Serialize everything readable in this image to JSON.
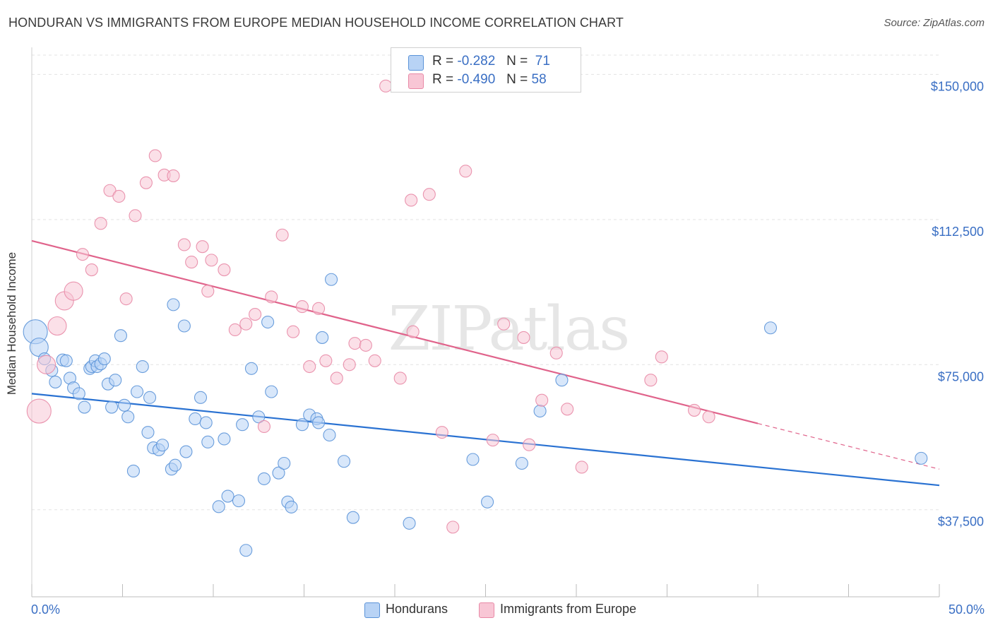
{
  "header": {
    "title": "HONDURAN VS IMMIGRANTS FROM EUROPE MEDIAN HOUSEHOLD INCOME CORRELATION CHART",
    "source": "Source: ZipAtlas.com"
  },
  "colors": {
    "hondurans_fill": "#b8d3f5",
    "hondurans_stroke": "#5b93d8",
    "hondurans_line": "#2a72d2",
    "europe_fill": "#f8c6d5",
    "europe_stroke": "#e889a6",
    "europe_line": "#e0638b",
    "tick_label": "#3a6fc4",
    "grid": "#e3e3e3"
  },
  "legend_top": {
    "rows": [
      {
        "r_label": "R =",
        "r_value": "-0.282",
        "n_label": "N =",
        "n_value": "71"
      },
      {
        "r_label": "R =",
        "r_value": "-0.490",
        "n_label": "N =",
        "n_value": "58"
      }
    ]
  },
  "chart_data": {
    "type": "scatter",
    "title": "HONDURAN VS IMMIGRANTS FROM EUROPE MEDIAN HOUSEHOLD INCOME CORRELATION CHART",
    "xlabel": "",
    "ylabel": "Median Household Income",
    "xlim": [
      0,
      50
    ],
    "ylim": [
      15000,
      155000
    ],
    "x_tick_labels": [
      "0.0%",
      "50.0%"
    ],
    "y_ticks": [
      37500,
      75000,
      112500,
      150000
    ],
    "y_tick_labels": [
      "$37,500",
      "$75,000",
      "$112,500",
      "$150,000"
    ],
    "grid": true,
    "legend_position": "bottom",
    "watermark": "ZIPatlas",
    "series": [
      {
        "name": "Hondurans",
        "trend": {
          "x": [
            0,
            50
          ],
          "y": [
            67500,
            43800
          ]
        },
        "points": [
          {
            "x": 0.2,
            "y": 83500,
            "s": 3
          },
          {
            "x": 0.4,
            "y": 79500,
            "s": 2
          },
          {
            "x": 0.7,
            "y": 76500,
            "s": 1
          },
          {
            "x": 1.1,
            "y": 73500,
            "s": 1
          },
          {
            "x": 1.3,
            "y": 70500,
            "s": 1
          },
          {
            "x": 1.7,
            "y": 76200,
            "s": 1
          },
          {
            "x": 1.9,
            "y": 76000,
            "s": 1
          },
          {
            "x": 2.1,
            "y": 71500,
            "s": 1
          },
          {
            "x": 2.3,
            "y": 69000,
            "s": 1
          },
          {
            "x": 2.6,
            "y": 67500,
            "s": 1
          },
          {
            "x": 2.9,
            "y": 64000,
            "s": 1
          },
          {
            "x": 3.2,
            "y": 74000,
            "s": 1
          },
          {
            "x": 3.3,
            "y": 74500,
            "s": 1
          },
          {
            "x": 3.5,
            "y": 76000,
            "s": 1
          },
          {
            "x": 3.6,
            "y": 74500,
            "s": 1
          },
          {
            "x": 3.8,
            "y": 75200,
            "s": 1
          },
          {
            "x": 4.0,
            "y": 76500,
            "s": 1
          },
          {
            "x": 4.2,
            "y": 70000,
            "s": 1
          },
          {
            "x": 4.4,
            "y": 64000,
            "s": 1
          },
          {
            "x": 4.6,
            "y": 71000,
            "s": 1
          },
          {
            "x": 4.9,
            "y": 82500,
            "s": 1
          },
          {
            "x": 5.1,
            "y": 64500,
            "s": 1
          },
          {
            "x": 5.3,
            "y": 61500,
            "s": 1
          },
          {
            "x": 5.6,
            "y": 47500,
            "s": 1
          },
          {
            "x": 5.8,
            "y": 68000,
            "s": 1
          },
          {
            "x": 6.1,
            "y": 74500,
            "s": 1
          },
          {
            "x": 6.4,
            "y": 57500,
            "s": 1
          },
          {
            "x": 6.5,
            "y": 66500,
            "s": 1
          },
          {
            "x": 6.7,
            "y": 53500,
            "s": 1
          },
          {
            "x": 7.0,
            "y": 53000,
            "s": 1
          },
          {
            "x": 7.2,
            "y": 54200,
            "s": 1
          },
          {
            "x": 7.7,
            "y": 48000,
            "s": 1
          },
          {
            "x": 7.8,
            "y": 90500,
            "s": 1
          },
          {
            "x": 7.9,
            "y": 49000,
            "s": 1
          },
          {
            "x": 8.4,
            "y": 85000,
            "s": 1
          },
          {
            "x": 8.5,
            "y": 52500,
            "s": 1
          },
          {
            "x": 9.0,
            "y": 61000,
            "s": 1
          },
          {
            "x": 9.3,
            "y": 66500,
            "s": 1
          },
          {
            "x": 9.6,
            "y": 60000,
            "s": 1
          },
          {
            "x": 9.7,
            "y": 55000,
            "s": 1
          },
          {
            "x": 10.3,
            "y": 38300,
            "s": 1
          },
          {
            "x": 10.6,
            "y": 55800,
            "s": 1
          },
          {
            "x": 10.8,
            "y": 41000,
            "s": 1
          },
          {
            "x": 11.4,
            "y": 39800,
            "s": 1
          },
          {
            "x": 11.6,
            "y": 59500,
            "s": 1
          },
          {
            "x": 11.8,
            "y": 27000,
            "s": 1
          },
          {
            "x": 12.1,
            "y": 74000,
            "s": 1
          },
          {
            "x": 12.5,
            "y": 61500,
            "s": 1
          },
          {
            "x": 12.8,
            "y": 45500,
            "s": 1
          },
          {
            "x": 13.0,
            "y": 86000,
            "s": 1
          },
          {
            "x": 13.2,
            "y": 68000,
            "s": 1
          },
          {
            "x": 13.6,
            "y": 47000,
            "s": 1
          },
          {
            "x": 13.9,
            "y": 49500,
            "s": 1
          },
          {
            "x": 14.1,
            "y": 39500,
            "s": 1
          },
          {
            "x": 14.3,
            "y": 38200,
            "s": 1
          },
          {
            "x": 14.9,
            "y": 59500,
            "s": 1
          },
          {
            "x": 15.3,
            "y": 62000,
            "s": 1
          },
          {
            "x": 15.7,
            "y": 61000,
            "s": 1
          },
          {
            "x": 15.8,
            "y": 60000,
            "s": 1
          },
          {
            "x": 16.0,
            "y": 82000,
            "s": 1
          },
          {
            "x": 16.4,
            "y": 56800,
            "s": 1
          },
          {
            "x": 16.5,
            "y": 97000,
            "s": 1
          },
          {
            "x": 17.2,
            "y": 50000,
            "s": 1
          },
          {
            "x": 17.7,
            "y": 35500,
            "s": 1
          },
          {
            "x": 20.8,
            "y": 34000,
            "s": 1
          },
          {
            "x": 24.3,
            "y": 50500,
            "s": 1
          },
          {
            "x": 25.1,
            "y": 39500,
            "s": 1
          },
          {
            "x": 27.0,
            "y": 49500,
            "s": 1
          },
          {
            "x": 28.0,
            "y": 63000,
            "s": 1
          },
          {
            "x": 29.2,
            "y": 71000,
            "s": 1
          },
          {
            "x": 40.7,
            "y": 84500,
            "s": 1
          },
          {
            "x": 49.0,
            "y": 50800,
            "s": 1
          }
        ]
      },
      {
        "name": "Immigrants from Europe",
        "trend": {
          "x": [
            0,
            40
          ],
          "y": [
            107000,
            59800
          ]
        },
        "trend_dashed": {
          "x": [
            40,
            50
          ],
          "y": [
            59800,
            48000
          ]
        },
        "points": [
          {
            "x": 0.4,
            "y": 63000,
            "s": 3
          },
          {
            "x": 0.8,
            "y": 75000,
            "s": 2
          },
          {
            "x": 1.4,
            "y": 85000,
            "s": 2
          },
          {
            "x": 1.8,
            "y": 91500,
            "s": 2
          },
          {
            "x": 2.3,
            "y": 94000,
            "s": 2
          },
          {
            "x": 2.8,
            "y": 103500,
            "s": 1
          },
          {
            "x": 3.3,
            "y": 99500,
            "s": 1
          },
          {
            "x": 3.8,
            "y": 111500,
            "s": 1
          },
          {
            "x": 4.3,
            "y": 120000,
            "s": 1
          },
          {
            "x": 4.8,
            "y": 118500,
            "s": 1
          },
          {
            "x": 5.2,
            "y": 92000,
            "s": 1
          },
          {
            "x": 5.7,
            "y": 113500,
            "s": 1
          },
          {
            "x": 6.3,
            "y": 122000,
            "s": 1
          },
          {
            "x": 6.8,
            "y": 129000,
            "s": 1
          },
          {
            "x": 7.3,
            "y": 124000,
            "s": 1
          },
          {
            "x": 7.8,
            "y": 123800,
            "s": 1
          },
          {
            "x": 8.4,
            "y": 106000,
            "s": 1
          },
          {
            "x": 8.8,
            "y": 101500,
            "s": 1
          },
          {
            "x": 9.4,
            "y": 105500,
            "s": 1
          },
          {
            "x": 9.7,
            "y": 94000,
            "s": 1
          },
          {
            "x": 9.9,
            "y": 102000,
            "s": 1
          },
          {
            "x": 10.6,
            "y": 99500,
            "s": 1
          },
          {
            "x": 11.2,
            "y": 84000,
            "s": 1
          },
          {
            "x": 11.8,
            "y": 85500,
            "s": 1
          },
          {
            "x": 12.3,
            "y": 88000,
            "s": 1
          },
          {
            "x": 12.8,
            "y": 59000,
            "s": 1
          },
          {
            "x": 13.2,
            "y": 92500,
            "s": 1
          },
          {
            "x": 13.8,
            "y": 108500,
            "s": 1
          },
          {
            "x": 14.4,
            "y": 83500,
            "s": 1
          },
          {
            "x": 14.9,
            "y": 90000,
            "s": 1
          },
          {
            "x": 15.3,
            "y": 74500,
            "s": 1
          },
          {
            "x": 15.8,
            "y": 89500,
            "s": 1
          },
          {
            "x": 16.2,
            "y": 76000,
            "s": 1
          },
          {
            "x": 16.8,
            "y": 71500,
            "s": 1
          },
          {
            "x": 17.5,
            "y": 75000,
            "s": 1
          },
          {
            "x": 17.8,
            "y": 80500,
            "s": 1
          },
          {
            "x": 18.4,
            "y": 80000,
            "s": 1
          },
          {
            "x": 18.9,
            "y": 76000,
            "s": 1
          },
          {
            "x": 19.5,
            "y": 147000,
            "s": 1
          },
          {
            "x": 20.3,
            "y": 71500,
            "s": 1
          },
          {
            "x": 20.9,
            "y": 117500,
            "s": 1
          },
          {
            "x": 21.0,
            "y": 83500,
            "s": 1
          },
          {
            "x": 21.9,
            "y": 119000,
            "s": 1
          },
          {
            "x": 22.6,
            "y": 57500,
            "s": 1
          },
          {
            "x": 23.2,
            "y": 33000,
            "s": 1
          },
          {
            "x": 23.9,
            "y": 125000,
            "s": 1
          },
          {
            "x": 25.4,
            "y": 55500,
            "s": 1
          },
          {
            "x": 26.0,
            "y": 85500,
            "s": 1
          },
          {
            "x": 27.1,
            "y": 82000,
            "s": 1
          },
          {
            "x": 27.4,
            "y": 54300,
            "s": 1
          },
          {
            "x": 28.1,
            "y": 65800,
            "s": 1
          },
          {
            "x": 28.9,
            "y": 78000,
            "s": 1
          },
          {
            "x": 29.5,
            "y": 63500,
            "s": 1
          },
          {
            "x": 30.3,
            "y": 48500,
            "s": 1
          },
          {
            "x": 34.1,
            "y": 71000,
            "s": 1
          },
          {
            "x": 34.7,
            "y": 77000,
            "s": 1
          },
          {
            "x": 36.5,
            "y": 63200,
            "s": 1
          },
          {
            "x": 37.3,
            "y": 61500,
            "s": 1
          }
        ]
      }
    ]
  }
}
